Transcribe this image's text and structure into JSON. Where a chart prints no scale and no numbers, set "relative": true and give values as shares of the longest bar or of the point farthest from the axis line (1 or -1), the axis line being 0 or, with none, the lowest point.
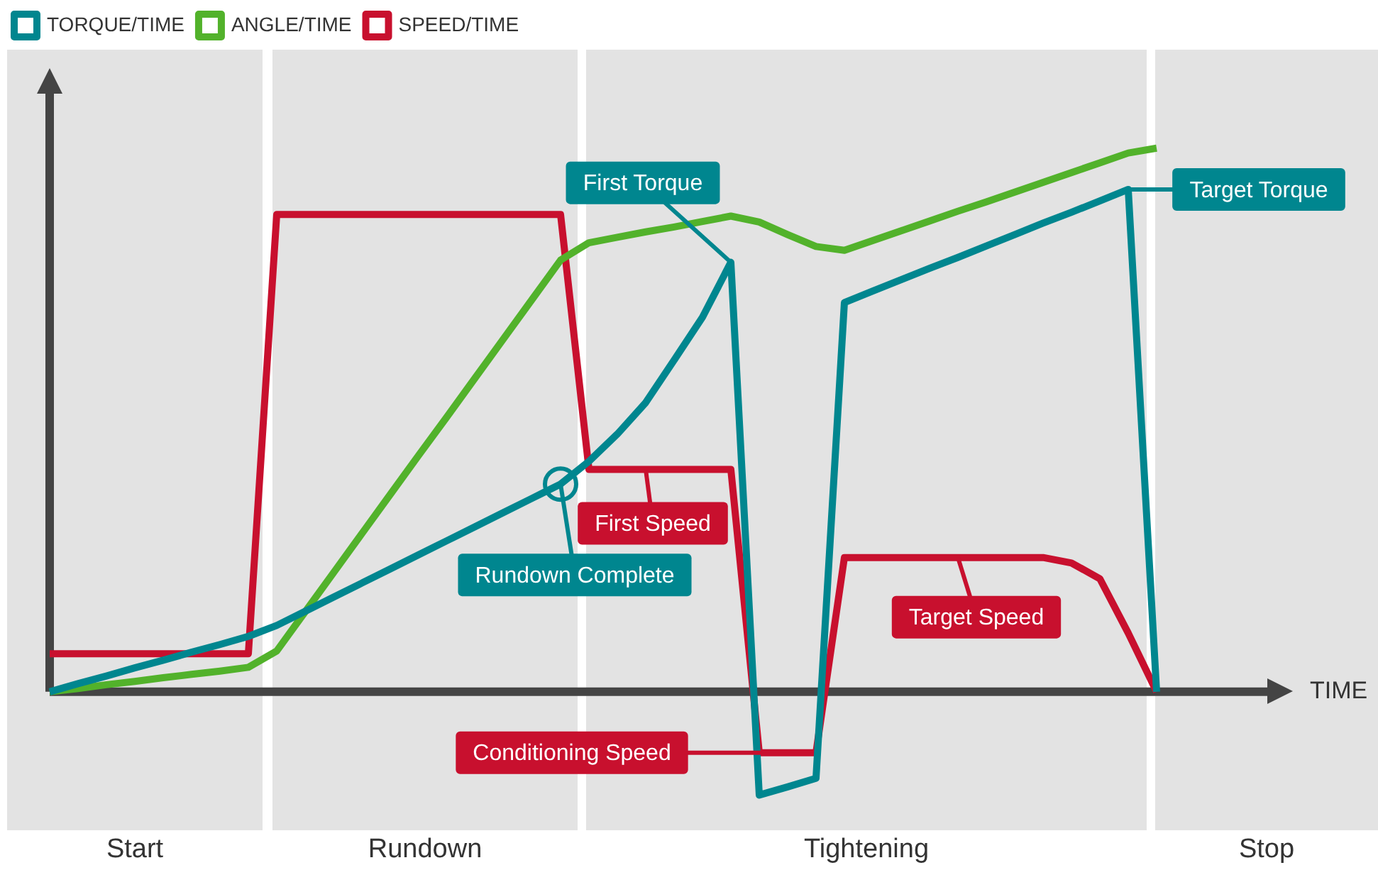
{
  "chart_data": {
    "type": "line",
    "relative": true,
    "legend": "top left",
    "marker": "none",
    "categories": [
      null,
      null,
      null,
      null,
      null,
      null,
      null,
      null,
      null,
      null,
      null,
      null,
      null,
      null,
      null,
      null,
      null,
      null,
      null,
      null,
      null,
      null,
      null,
      null,
      null,
      null,
      null,
      null,
      null,
      null,
      null,
      null,
      null,
      null,
      null,
      null,
      null,
      null,
      null,
      null
    ],
    "series": [
      {
        "name": "TORQUE/TIME",
        "color": "#00868f",
        "values": [
          0,
          0.015,
          0.029,
          0.044,
          0.058,
          0.073,
          0.087,
          0.102,
          0.122,
          0.148,
          0.174,
          0.2,
          0.226,
          0.252,
          0.278,
          0.304,
          0.33,
          0.356,
          0.382,
          0.424,
          0.474,
          0.532,
          0.61,
          0.689,
          0.79,
          -0.19,
          -0.175,
          -0.159,
          0.716,
          0.737,
          0.758,
          0.779,
          0.799,
          0.82,
          0.841,
          0.862,
          0.882,
          0.903,
          0.924,
          0
        ]
      },
      {
        "name": "ANGLE/TIME",
        "color": "#52b22b",
        "values": [
          0,
          0.006,
          0.013,
          0.019,
          0.026,
          0.032,
          0.038,
          0.045,
          0.075,
          0.147,
          0.219,
          0.291,
          0.363,
          0.435,
          0.506,
          0.578,
          0.65,
          0.722,
          0.794,
          0.826,
          0.836,
          0.846,
          0.855,
          0.865,
          0.875,
          0.864,
          0.841,
          0.819,
          0.812,
          0.83,
          0.848,
          0.866,
          0.884,
          0.901,
          0.919,
          0.937,
          0.955,
          0.973,
          0.991,
          1
        ]
      },
      {
        "name": "SPEED/TIME",
        "color": "#c8102e",
        "values": [
          0.07,
          0.07,
          0.07,
          0.07,
          0.07,
          0.07,
          0.07,
          0.07,
          0.878,
          0.878,
          0.878,
          0.878,
          0.878,
          0.878,
          0.878,
          0.878,
          0.878,
          0.878,
          0.878,
          0.409,
          0.409,
          0.409,
          0.409,
          0.409,
          0.409,
          -0.112,
          -0.112,
          -0.112,
          0.247,
          0.247,
          0.247,
          0.247,
          0.247,
          0.247,
          0.247,
          0.247,
          0.237,
          0.208,
          0.108,
          0
        ]
      }
    ],
    "annotations": [
      "First Torque",
      "Target Torque",
      "First Speed",
      "Rundown Complete",
      "Target Speed",
      "Conditioning Speed",
      "TIME",
      "Start",
      "Rundown",
      "Tightening",
      "Stop"
    ]
  }
}
